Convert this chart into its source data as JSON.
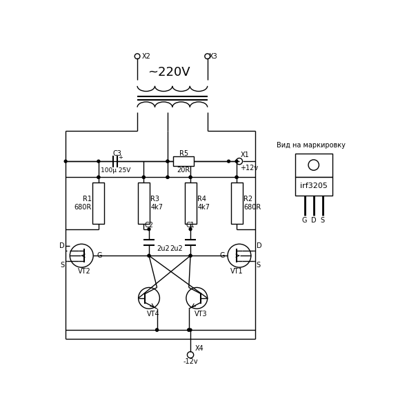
{
  "bg_color": "#ffffff",
  "line_color": "#000000",
  "text_color": "#000000",
  "fig_width": 5.77,
  "fig_height": 6.04,
  "dpi": 100,
  "labels": {
    "x2": "X2",
    "x3": "X3",
    "x1": "X1",
    "x4": "X4",
    "voltage_ac": "~220V",
    "voltage_plus": "+12v",
    "voltage_minus": "-12v",
    "c3": "C3",
    "c3_val": "100μ 25V",
    "r5": "R5",
    "r5_val": "20R",
    "r1": "R1",
    "r1_val": "680R",
    "r2": "R2",
    "r2_val": "680R",
    "r3": "R3",
    "r3_val": "4k7",
    "r4": "R4",
    "r4_val": "4k7",
    "c1": "C1",
    "c1_val": "2u2",
    "c2": "C2",
    "c2_val": "2u2",
    "vt1": "VT1",
    "vt2": "VT2",
    "vt3": "VT3",
    "vt4": "VT4",
    "view_label": "Вид на маркировку",
    "irf_label": "irf3205",
    "gds": [
      "G",
      "D",
      "S"
    ]
  }
}
